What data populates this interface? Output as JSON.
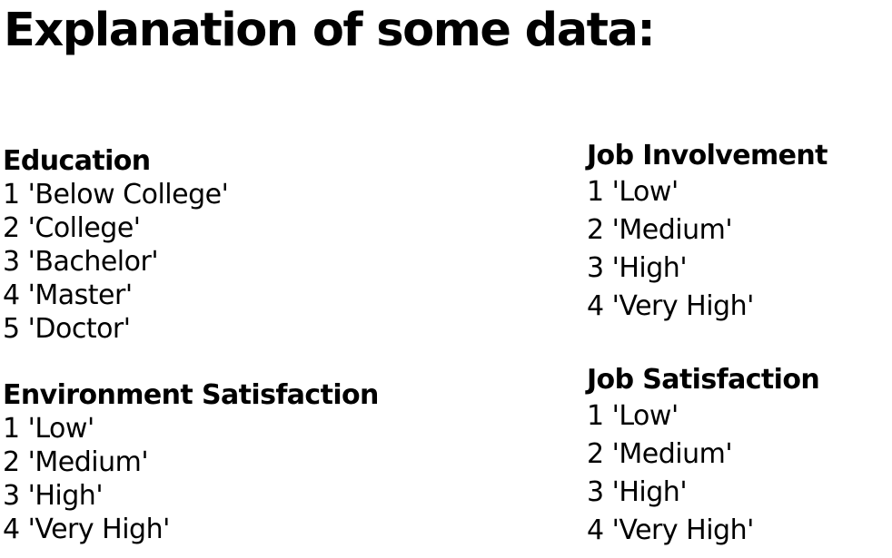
{
  "title": "Explanation of some data:",
  "sections": {
    "education": {
      "heading": "Education",
      "items": [
        "1 'Below College'",
        "2 'College'",
        "3 'Bachelor'",
        "4 'Master'",
        "5 'Doctor'"
      ]
    },
    "environment_satisfaction": {
      "heading": "Environment Satisfaction",
      "items": [
        "1 'Low'",
        "2 'Medium'",
        "3 'High'",
        "4 'Very High'"
      ]
    },
    "job_involvement": {
      "heading": "Job Involvement",
      "items": [
        "1 'Low'",
        "2 'Medium'",
        "3 'High'",
        "4 'Very High'"
      ]
    },
    "job_satisfaction": {
      "heading": "Job Satisfaction",
      "items": [
        "1 'Low'",
        "2 'Medium'",
        "3 'High'",
        "4 'Very High'"
      ]
    }
  }
}
